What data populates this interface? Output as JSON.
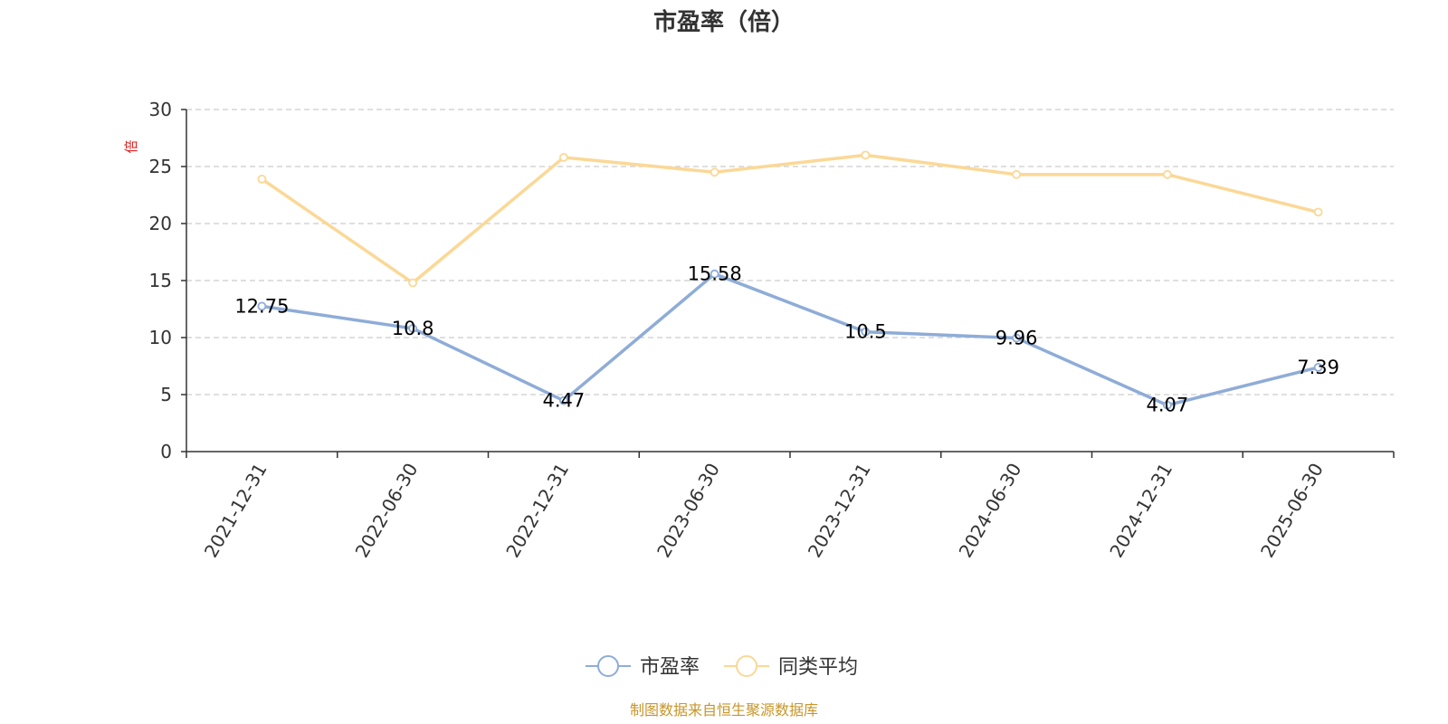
{
  "chart_data": {
    "type": "line",
    "title": "市盈率（倍）",
    "ylabel": "倍",
    "ylim": [
      0,
      30
    ],
    "yticks": [
      0,
      5,
      10,
      15,
      20,
      25,
      30
    ],
    "grid": true,
    "legend_position": "bottom-center",
    "categories": [
      "2021-12-31",
      "2022-06-30",
      "2022-12-31",
      "2023-06-30",
      "2023-12-31",
      "2024-06-30",
      "2024-12-31",
      "2025-06-30"
    ],
    "series": [
      {
        "name": "市盈率",
        "color": "#8eacd8",
        "show_labels": true,
        "values": [
          12.75,
          10.8,
          4.47,
          15.58,
          10.5,
          9.96,
          4.07,
          7.39
        ]
      },
      {
        "name": "同类平均",
        "color": "#fbd896",
        "show_labels": false,
        "values": [
          23.9,
          14.8,
          25.8,
          24.5,
          26.0,
          24.3,
          24.3,
          21.0
        ]
      }
    ]
  },
  "source_note": "制图数据来自恒生聚源数据库",
  "colors": {
    "source": "#c8952a",
    "axis": "#333333",
    "grid": "#cccccc"
  }
}
